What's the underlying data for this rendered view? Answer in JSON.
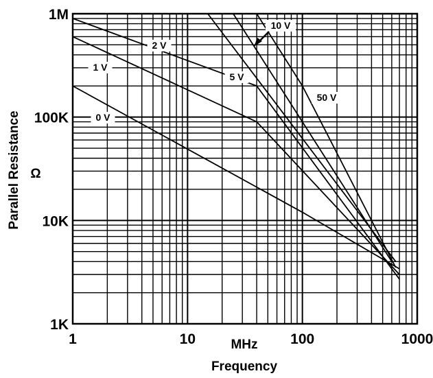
{
  "chart_data": {
    "type": "line",
    "title": "",
    "xlabel_unit": "MHz",
    "xlabel": "Frequency",
    "ylabel": "Parallel Resistance",
    "ylabel_unit": "Ω",
    "x_scale": "log",
    "y_scale": "log",
    "xlim": [
      1,
      1000
    ],
    "ylim": [
      1000,
      1000000
    ],
    "grid": true,
    "x_tick_labels": [
      "1",
      "10",
      "100",
      "1000"
    ],
    "y_tick_labels": [
      "1K",
      "10K",
      "100K",
      "1M"
    ],
    "series": [
      {
        "name": "0 V",
        "x": [
          1,
          10,
          100,
          700
        ],
        "y": [
          200000,
          49000,
          12000,
          3400
        ]
      },
      {
        "name": "1 V",
        "x": [
          1,
          40,
          700
        ],
        "y": [
          600000,
          90000,
          3000
        ]
      },
      {
        "name": "2 V",
        "x": [
          1,
          40,
          700
        ],
        "y": [
          900000,
          200000,
          2700
        ]
      },
      {
        "name": "5 V",
        "x": [
          15,
          650
        ],
        "y": [
          1000000,
          4000
        ]
      },
      {
        "name": "10 V",
        "x": [
          25,
          600
        ],
        "y": [
          1000000,
          4000
        ]
      },
      {
        "name": "50 V",
        "x": [
          40,
          100,
          650
        ],
        "y": [
          1000000,
          200000,
          3500
        ]
      }
    ]
  }
}
